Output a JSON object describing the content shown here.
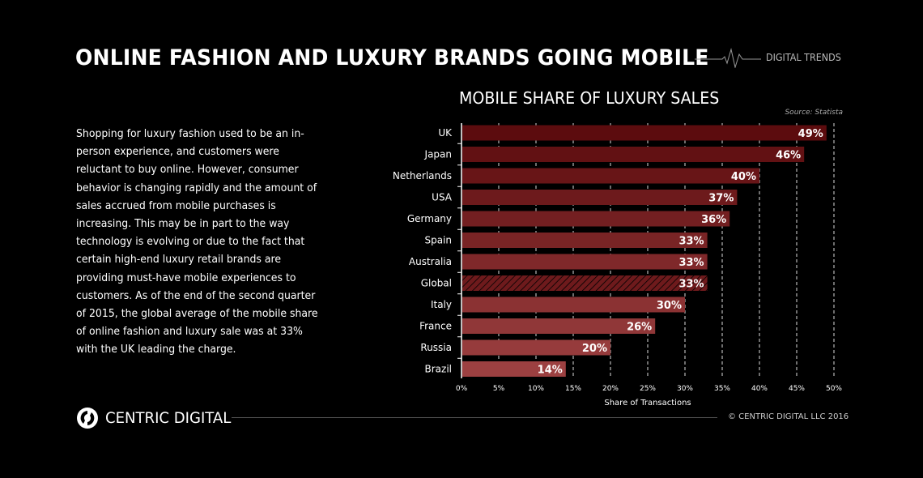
{
  "header": {
    "title": "ONLINE FASHION AND LUXURY BRANDS GOING MOBILE",
    "tag": "DIGITAL TRENDS"
  },
  "body_text": "Shopping for luxury fashion used to be an in-person experience, and customers were reluctant to buy online. However, consumer behavior is changing rapidly and the amount of sales accrued from mobile purchases is increasing. This may be in part to the way technology is evolving or due to the fact that certain high-end luxury retail brands are providing must-have mobile experiences to customers. As of the end of the second quarter of 2015, the global average of the mobile share of online fashion and luxury sale was at 33% with the UK leading the charge.",
  "chart_data": {
    "type": "bar",
    "orientation": "horizontal",
    "title": "MOBILE SHARE OF LUXURY SALES",
    "source": "Source: Statista",
    "categories": [
      "UK",
      "Japan",
      "Netherlands",
      "USA",
      "Germany",
      "Spain",
      "Australia",
      "Global",
      "Italy",
      "France",
      "Russia",
      "Brazil"
    ],
    "values": [
      49,
      46,
      40,
      37,
      36,
      33,
      33,
      33,
      30,
      26,
      20,
      14
    ],
    "data_labels": [
      "49%",
      "46%",
      "40%",
      "37%",
      "36%",
      "33%",
      "33%",
      "33%",
      "30%",
      "26%",
      "20%",
      "14%"
    ],
    "highlight": "Global",
    "xlabel": "Share of Transactions",
    "ylabel": "",
    "xlim": [
      0,
      50
    ],
    "xticks": [
      "0%",
      "5%",
      "10%",
      "15%",
      "20%",
      "25%",
      "30%",
      "35%",
      "40%",
      "45%",
      "50%"
    ],
    "grid": true,
    "colors": {
      "top": "#5c0c0e",
      "bottom": "#9c4041"
    }
  },
  "footer": {
    "brand": "CENTRIC DIGITAL",
    "copyright": "© CENTRIC DIGITAL LLC 2016"
  }
}
